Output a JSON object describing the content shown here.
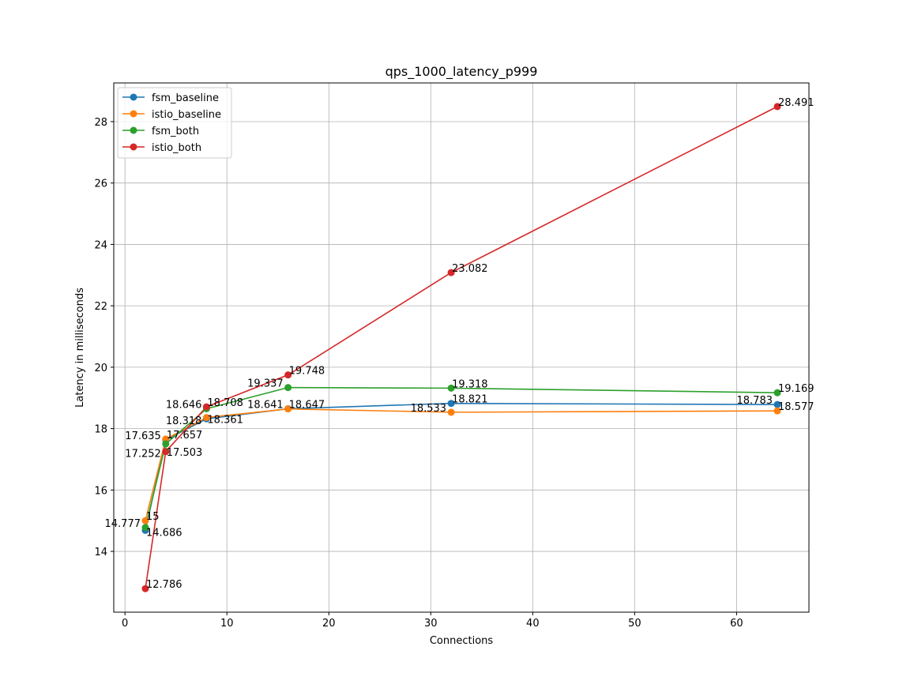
{
  "chart_data": {
    "type": "line",
    "title": "qps_1000_latency_p999",
    "xlabel": "Connections",
    "ylabel": "Latency in milliseconds",
    "xlim": [
      -1.1,
      67.1
    ],
    "ylim": [
      12.02,
      29.26
    ],
    "xticks": [
      0,
      10,
      20,
      30,
      40,
      50,
      60
    ],
    "yticks": [
      14,
      16,
      18,
      20,
      22,
      24,
      26,
      28
    ],
    "grid": true,
    "legend_position": "top-left",
    "x": [
      2,
      4,
      8,
      16,
      32,
      64
    ],
    "series": [
      {
        "name": "fsm_baseline",
        "color": "#1f77b4",
        "values": [
          14.686,
          17.635,
          18.318,
          18.647,
          18.821,
          18.783
        ]
      },
      {
        "name": "istio_baseline",
        "color": "#ff7f0e",
        "values": [
          15.0,
          17.657,
          18.361,
          18.641,
          18.533,
          18.577
        ]
      },
      {
        "name": "fsm_both",
        "color": "#2ca02c",
        "values": [
          14.777,
          17.503,
          18.646,
          19.337,
          19.318,
          19.169
        ]
      },
      {
        "name": "istio_both",
        "color": "#d62728",
        "values": [
          12.786,
          17.252,
          18.708,
          19.748,
          23.082,
          28.491
        ]
      }
    ]
  }
}
